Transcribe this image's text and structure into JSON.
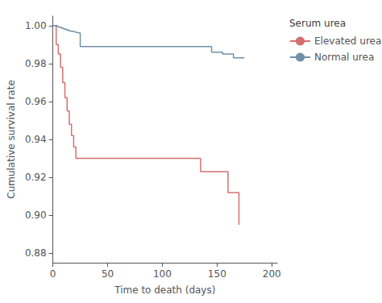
{
  "chart_data": {
    "type": "step",
    "xlabel": "Time to death (days)",
    "ylabel": "Cumulative survival rate",
    "legend_title": "Serum urea",
    "legend": "right",
    "grid": false,
    "xlim": [
      0,
      205
    ],
    "xticks": [
      0,
      50,
      100,
      150,
      200
    ],
    "ylim": [
      0.875,
      1.005
    ],
    "yticks": [
      0.88,
      {
        "value": 0.9,
        "label": "0.90"
      },
      0.92,
      0.94,
      0.96,
      0.98,
      {
        "value": 1.0,
        "label": "1.00"
      }
    ],
    "series": [
      {
        "name": "Elevated urea",
        "color": "#d47070",
        "x": [
          0,
          2,
          3,
          5,
          7,
          9,
          11,
          13,
          15,
          17,
          19,
          21,
          25,
          30,
          130,
          135,
          160,
          165,
          170
        ],
        "values": [
          1.0,
          1.0,
          0.99,
          0.985,
          0.978,
          0.97,
          0.962,
          0.955,
          0.948,
          0.942,
          0.936,
          0.93,
          0.93,
          0.93,
          0.93,
          0.923,
          0.912,
          0.912,
          0.895
        ]
      },
      {
        "name": "Normal urea",
        "color": "#7090a8",
        "x": [
          0,
          2,
          4,
          6,
          8,
          10,
          12,
          14,
          16,
          18,
          20,
          22,
          25,
          130,
          145,
          155,
          165,
          175
        ],
        "values": [
          1.0,
          1.0,
          0.9994,
          0.999,
          0.9986,
          0.9982,
          0.9978,
          0.9974,
          0.997,
          0.9967,
          0.9964,
          0.9961,
          0.989,
          0.989,
          0.986,
          0.985,
          0.983,
          0.983
        ]
      }
    ]
  }
}
